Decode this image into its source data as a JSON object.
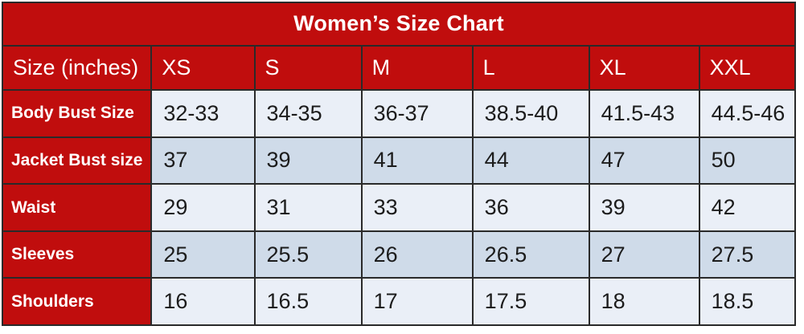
{
  "colors": {
    "accent_red": "#c00d0d",
    "row_light": "#eaeff7",
    "row_dark": "#cfdbe9",
    "border": "#2a2a2a",
    "header_text": "#ffffff",
    "data_text": "#1c1c1c"
  },
  "chart_data": {
    "type": "table",
    "title": "Women’s Size Chart",
    "columns": [
      "Size (inches)",
      "XS",
      "S",
      "M",
      "L",
      "XL",
      "XXL"
    ],
    "rows": [
      [
        "Body Bust Size",
        "32-33",
        "34-35",
        "36-37",
        "38.5-40",
        "41.5-43",
        "44.5-46"
      ],
      [
        "Jacket Bust size",
        "37",
        "39",
        "41",
        "44",
        "47",
        "50"
      ],
      [
        "Waist",
        "29",
        "31",
        "33",
        "36",
        "39",
        "42"
      ],
      [
        "Sleeves",
        "25",
        "25.5",
        "26",
        "26.5",
        "27",
        "27.5"
      ],
      [
        "Shoulders",
        "16",
        "16.5",
        "17",
        "17.5",
        "18",
        "18.5"
      ]
    ],
    "layout": {
      "title_style": "red banner, white bold, centered",
      "header_row_style": "red background, white text, left aligned",
      "row_label_style": "red background, white bold text",
      "data_row_striping": [
        "light",
        "dark",
        "light",
        "dark",
        "light"
      ],
      "grid": true
    }
  }
}
